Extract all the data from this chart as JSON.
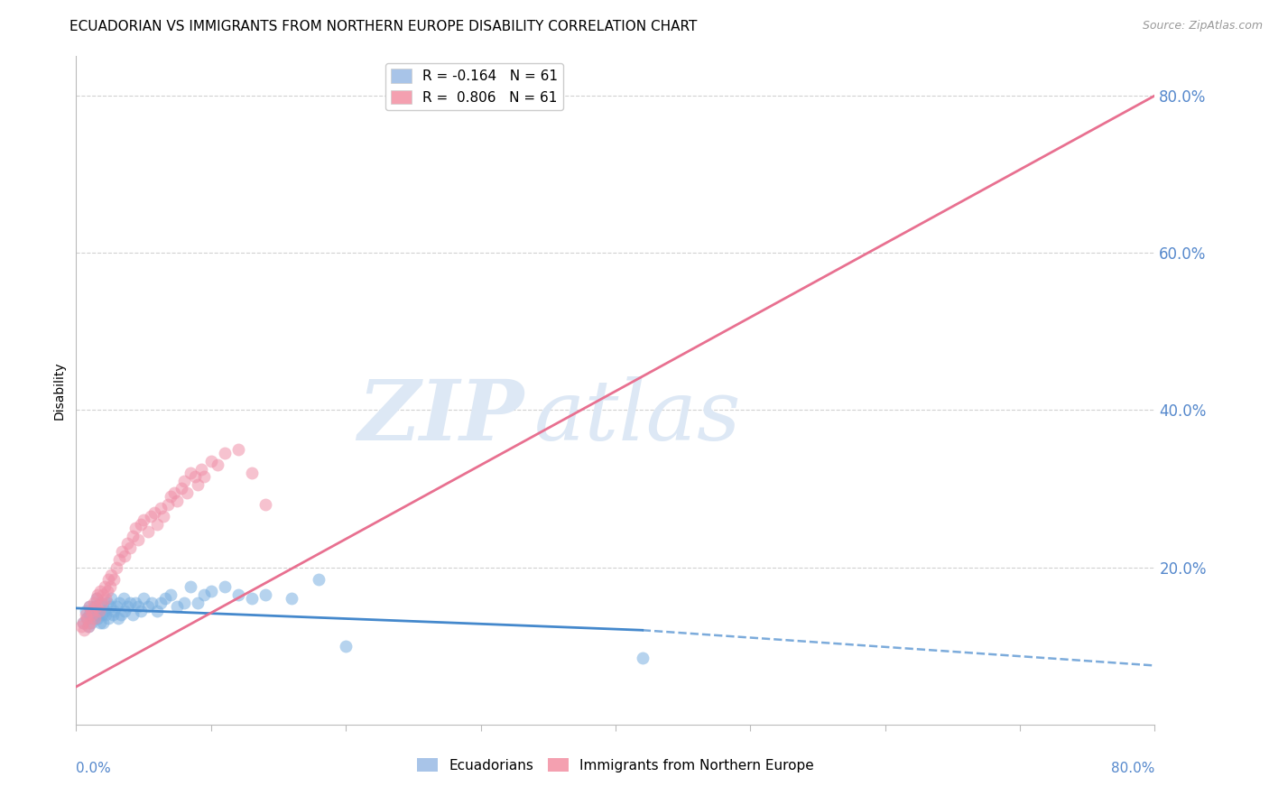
{
  "title": "ECUADORIAN VS IMMIGRANTS FROM NORTHERN EUROPE DISABILITY CORRELATION CHART",
  "source": "Source: ZipAtlas.com",
  "ylabel": "Disability",
  "ytick_labels": [
    "20.0%",
    "40.0%",
    "60.0%",
    "80.0%"
  ],
  "ytick_values": [
    0.2,
    0.4,
    0.6,
    0.8
  ],
  "xlim": [
    0.0,
    0.8
  ],
  "ylim": [
    0.0,
    0.85
  ],
  "legend_entries": [
    {
      "label": "R = -0.164   N = 61",
      "color": "#a8c4e8"
    },
    {
      "label": "R =  0.806   N = 61",
      "color": "#f4a0b0"
    }
  ],
  "ecuadorians": {
    "color": "#7ab0e0",
    "alpha": 0.55,
    "marker_size": 100,
    "x": [
      0.005,
      0.007,
      0.008,
      0.009,
      0.01,
      0.01,
      0.011,
      0.012,
      0.013,
      0.013,
      0.014,
      0.015,
      0.015,
      0.016,
      0.017,
      0.018,
      0.018,
      0.019,
      0.02,
      0.02,
      0.021,
      0.022,
      0.023,
      0.024,
      0.025,
      0.026,
      0.027,
      0.028,
      0.03,
      0.031,
      0.032,
      0.033,
      0.035,
      0.036,
      0.038,
      0.04,
      0.042,
      0.044,
      0.046,
      0.048,
      0.05,
      0.053,
      0.056,
      0.06,
      0.063,
      0.066,
      0.07,
      0.075,
      0.08,
      0.085,
      0.09,
      0.095,
      0.1,
      0.11,
      0.12,
      0.13,
      0.14,
      0.16,
      0.18,
      0.2,
      0.42
    ],
    "y": [
      0.13,
      0.145,
      0.135,
      0.125,
      0.14,
      0.15,
      0.13,
      0.14,
      0.145,
      0.135,
      0.15,
      0.14,
      0.16,
      0.135,
      0.145,
      0.13,
      0.155,
      0.14,
      0.15,
      0.13,
      0.145,
      0.14,
      0.155,
      0.135,
      0.15,
      0.16,
      0.14,
      0.145,
      0.15,
      0.135,
      0.155,
      0.14,
      0.16,
      0.145,
      0.15,
      0.155,
      0.14,
      0.155,
      0.15,
      0.145,
      0.16,
      0.15,
      0.155,
      0.145,
      0.155,
      0.16,
      0.165,
      0.15,
      0.155,
      0.175,
      0.155,
      0.165,
      0.17,
      0.175,
      0.165,
      0.16,
      0.165,
      0.16,
      0.185,
      0.1,
      0.085
    ],
    "trend_color": "#4488cc",
    "trend_x_start": 0.0,
    "trend_x_solid_end": 0.42,
    "trend_x_end": 0.8,
    "trend_y_at_start": 0.148,
    "trend_y_at_solid_end": 0.12,
    "trend_y_at_end": 0.075
  },
  "northern_europe": {
    "color": "#f090a8",
    "alpha": 0.55,
    "marker_size": 100,
    "x": [
      0.004,
      0.005,
      0.006,
      0.007,
      0.008,
      0.009,
      0.01,
      0.01,
      0.011,
      0.012,
      0.013,
      0.014,
      0.015,
      0.015,
      0.016,
      0.017,
      0.018,
      0.019,
      0.02,
      0.021,
      0.022,
      0.023,
      0.024,
      0.025,
      0.026,
      0.028,
      0.03,
      0.032,
      0.034,
      0.036,
      0.038,
      0.04,
      0.042,
      0.044,
      0.046,
      0.048,
      0.05,
      0.053,
      0.055,
      0.058,
      0.06,
      0.063,
      0.065,
      0.068,
      0.07,
      0.073,
      0.075,
      0.078,
      0.08,
      0.082,
      0.085,
      0.088,
      0.09,
      0.093,
      0.095,
      0.1,
      0.105,
      0.11,
      0.12,
      0.13,
      0.14
    ],
    "y": [
      0.125,
      0.13,
      0.12,
      0.14,
      0.135,
      0.125,
      0.15,
      0.13,
      0.145,
      0.14,
      0.155,
      0.135,
      0.16,
      0.15,
      0.165,
      0.145,
      0.17,
      0.155,
      0.165,
      0.175,
      0.16,
      0.17,
      0.185,
      0.175,
      0.19,
      0.185,
      0.2,
      0.21,
      0.22,
      0.215,
      0.23,
      0.225,
      0.24,
      0.25,
      0.235,
      0.255,
      0.26,
      0.245,
      0.265,
      0.27,
      0.255,
      0.275,
      0.265,
      0.28,
      0.29,
      0.295,
      0.285,
      0.3,
      0.31,
      0.295,
      0.32,
      0.315,
      0.305,
      0.325,
      0.315,
      0.335,
      0.33,
      0.345,
      0.35,
      0.32,
      0.28
    ],
    "trend_color": "#e87090",
    "trend_x_start": 0.0,
    "trend_x_end": 0.8,
    "trend_y_at_start": 0.048,
    "trend_y_at_end": 0.8
  },
  "watermark_top": "ZIP",
  "watermark_bottom": "atlas",
  "watermark_color": "#dde8f5",
  "background_color": "#ffffff",
  "grid_color": "#cccccc",
  "title_fontsize": 11,
  "axis_label_fontsize": 10,
  "tick_color": "#5588cc",
  "legend_fontsize": 11
}
